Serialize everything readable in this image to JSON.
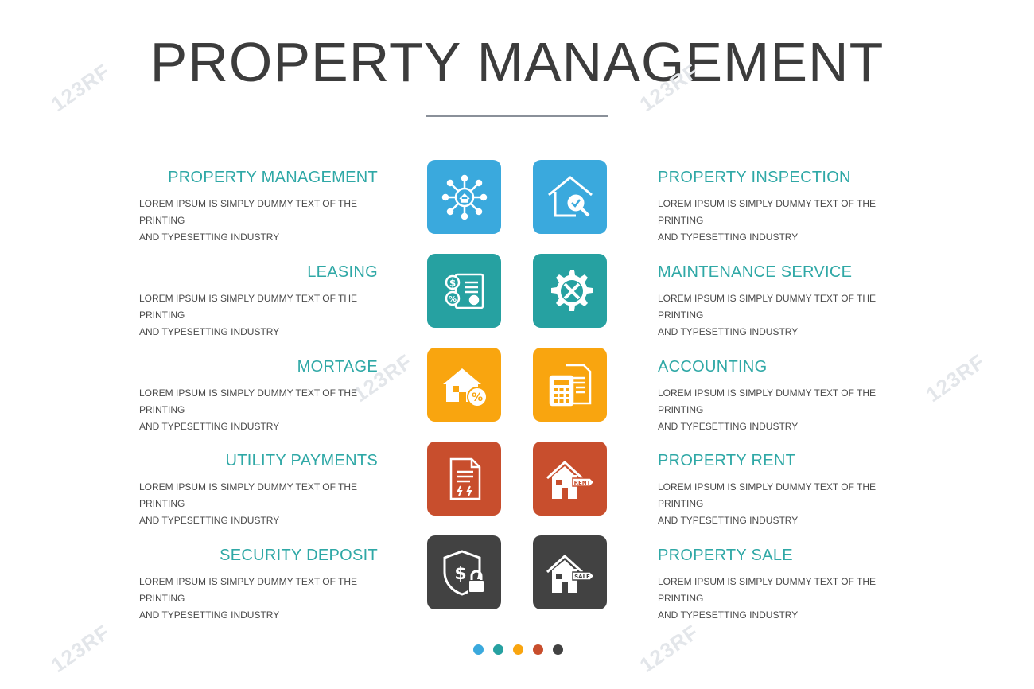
{
  "title": "PROPERTY MANAGEMENT",
  "colors": {
    "blue": "#3aa9dd",
    "teal": "#26a1a1",
    "orange": "#f9a50f",
    "rust": "#c84e2d",
    "dark": "#424242"
  },
  "left_items": [
    {
      "title": "PROPERTY MANAGEMENT",
      "desc1": "Lorem ipsum is simply dummy text of the printing",
      "desc2": "and typesetting industry"
    },
    {
      "title": "LEASING",
      "desc1": "Lorem ipsum is simply dummy text of the printing",
      "desc2": "and typesetting industry"
    },
    {
      "title": "MORTAGE",
      "desc1": "Lorem ipsum is simply dummy text of the printing",
      "desc2": "and typesetting industry"
    },
    {
      "title": "UTILITY PAYMENTS",
      "desc1": "Lorem ipsum is simply dummy text of the printing",
      "desc2": "and typesetting industry"
    },
    {
      "title": "SECURITY DEPOSIT",
      "desc1": "Lorem ipsum is simply dummy text of the printing",
      "desc2": "and typesetting industry"
    }
  ],
  "right_items": [
    {
      "title": "PROPERTY INSPECTION",
      "desc1": "Lorem ipsum is simply dummy text of the printing",
      "desc2": "and typesetting industry"
    },
    {
      "title": "MAINTENANCE SERVICE",
      "desc1": "Lorem ipsum is simply dummy text of the printing",
      "desc2": "and typesetting industry"
    },
    {
      "title": "ACCOUNTING",
      "desc1": "Lorem ipsum is simply dummy text of the printing",
      "desc2": "and typesetting industry"
    },
    {
      "title": "PROPERTY RENT",
      "desc1": "Lorem ipsum is simply dummy text of the printing",
      "desc2": "and typesetting industry"
    },
    {
      "title": "PROPERTY SALE",
      "desc1": "Lorem ipsum is simply dummy text of the printing",
      "desc2": "and typesetting industry"
    }
  ],
  "icons": {
    "left": [
      "network-house-icon",
      "certificate-money-icon",
      "house-percent-icon",
      "utility-bill-icon",
      "shield-dollar-lock-icon"
    ],
    "right": [
      "house-inspection-icon",
      "gear-tools-icon",
      "calculator-document-icon",
      "house-rent-sign-icon",
      "house-sale-sign-icon"
    ]
  },
  "sign_labels": {
    "rent": "RENT",
    "sale": "SALE"
  },
  "watermark": "123RF"
}
